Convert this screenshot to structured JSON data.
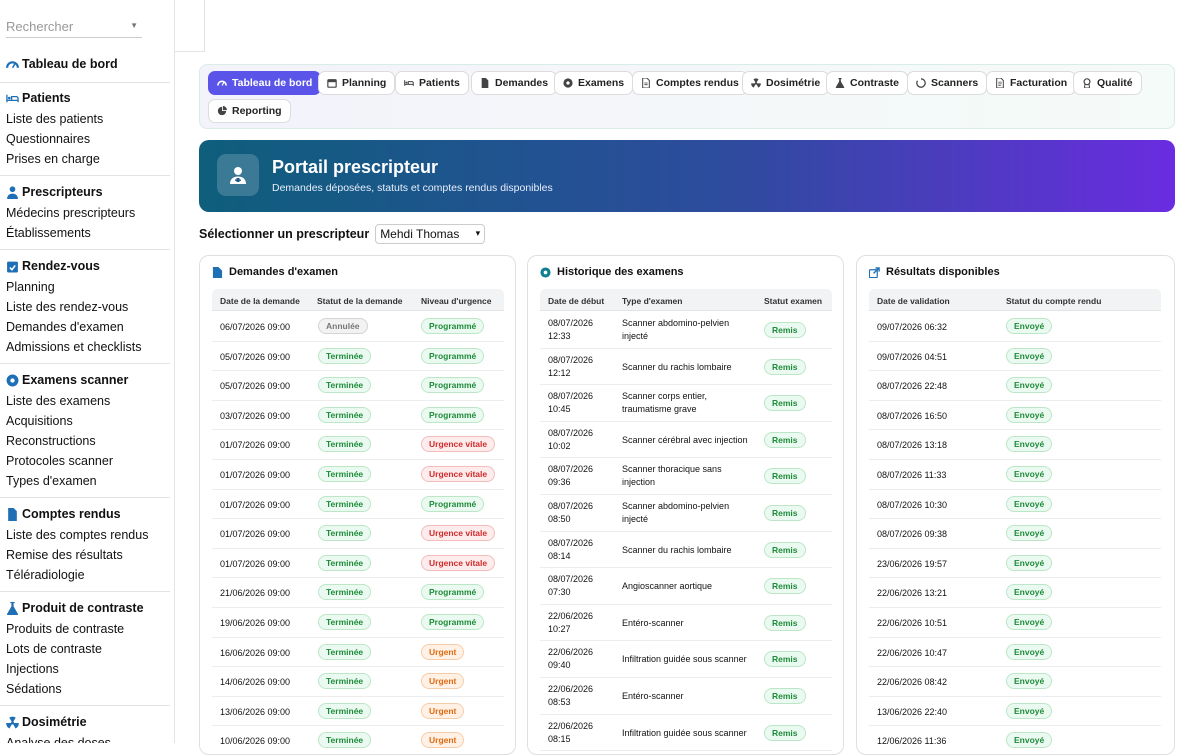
{
  "sidebar": {
    "search_placeholder": "Rechercher",
    "dashboard": "Tableau de bord",
    "sections": [
      {
        "title": "Patients",
        "icon": "bed-icon",
        "items": [
          "Liste des patients",
          "Questionnaires",
          "Prises en charge"
        ]
      },
      {
        "title": "Prescripteurs",
        "icon": "user-doctor-icon",
        "items": [
          "Médecins prescripteurs",
          "Établissements"
        ]
      },
      {
        "title": "Rendez-vous",
        "icon": "calendar-check-icon",
        "items": [
          "Planning",
          "Liste des rendez-vous",
          "Demandes d'examen",
          "Admissions et checklists"
        ]
      },
      {
        "title": "Examens scanner",
        "icon": "circle-dot-icon",
        "items": [
          "Liste des examens",
          "Acquisitions",
          "Reconstructions",
          "Protocoles scanner",
          "Types d'examen"
        ]
      },
      {
        "title": "Comptes rendus",
        "icon": "file-icon",
        "items": [
          "Liste des comptes rendus",
          "Remise des résultats",
          "Téléradiologie"
        ]
      },
      {
        "title": "Produit de contraste",
        "icon": "flask-icon",
        "items": [
          "Produits de contraste",
          "Lots de contraste",
          "Injections",
          "Sédations"
        ]
      },
      {
        "title": "Dosimétrie",
        "icon": "radiation-icon",
        "items": [
          "Analyse des doses"
        ]
      }
    ]
  },
  "tabs": [
    {
      "label": "Tableau de bord",
      "icon": "gauge-icon",
      "active": true
    },
    {
      "label": "Planning",
      "icon": "calendar-icon"
    },
    {
      "label": "Patients",
      "icon": "bed-icon"
    },
    {
      "label": "Demandes",
      "icon": "file-icon"
    },
    {
      "label": "Examens",
      "icon": "circle-dot-icon"
    },
    {
      "label": "Comptes rendus",
      "icon": "file-lines-icon"
    },
    {
      "label": "Dosimétrie",
      "icon": "radiation-icon"
    },
    {
      "label": "Contraste",
      "icon": "flask-icon"
    },
    {
      "label": "Scanners",
      "icon": "circle-notch-icon"
    },
    {
      "label": "Facturation",
      "icon": "invoice-icon"
    },
    {
      "label": "Qualité",
      "icon": "award-icon"
    },
    {
      "label": "Reporting",
      "icon": "chart-pie-icon"
    }
  ],
  "hero": {
    "title": "Portail prescripteur",
    "subtitle": "Demandes déposées, statuts et comptes rendus disponibles",
    "icon": "user-doctor-icon"
  },
  "selector": {
    "label": "Sélectionner un prescripteur",
    "value": "Mehdi Thomas"
  },
  "colors": {
    "accent": "#5a55e8",
    "hero_start": "#0e5e7c",
    "hero_end": "#6a2ce0",
    "badge_green": "#1f8b3a",
    "badge_red": "#d12a2a",
    "badge_orange": "#e06a10"
  },
  "requests": {
    "title": "Demandes d'examen",
    "headers": [
      "Date de la demande",
      "Statut de la demande",
      "Niveau d'urgence"
    ],
    "rows": [
      {
        "date": "06/07/2026 09:00",
        "status": "Annulée",
        "urgency": "Programmé"
      },
      {
        "date": "05/07/2026 09:00",
        "status": "Terminée",
        "urgency": "Programmé"
      },
      {
        "date": "05/07/2026 09:00",
        "status": "Terminée",
        "urgency": "Programmé"
      },
      {
        "date": "03/07/2026 09:00",
        "status": "Terminée",
        "urgency": "Programmé"
      },
      {
        "date": "01/07/2026 09:00",
        "status": "Terminée",
        "urgency": "Urgence vitale"
      },
      {
        "date": "01/07/2026 09:00",
        "status": "Terminée",
        "urgency": "Urgence vitale"
      },
      {
        "date": "01/07/2026 09:00",
        "status": "Terminée",
        "urgency": "Programmé"
      },
      {
        "date": "01/07/2026 09:00",
        "status": "Terminée",
        "urgency": "Urgence vitale"
      },
      {
        "date": "01/07/2026 09:00",
        "status": "Terminée",
        "urgency": "Urgence vitale"
      },
      {
        "date": "21/06/2026 09:00",
        "status": "Terminée",
        "urgency": "Programmé"
      },
      {
        "date": "19/06/2026 09:00",
        "status": "Terminée",
        "urgency": "Programmé"
      },
      {
        "date": "16/06/2026 09:00",
        "status": "Terminée",
        "urgency": "Urgent"
      },
      {
        "date": "14/06/2026 09:00",
        "status": "Terminée",
        "urgency": "Urgent"
      },
      {
        "date": "13/06/2026 09:00",
        "status": "Terminée",
        "urgency": "Urgent"
      },
      {
        "date": "10/06/2026 09:00",
        "status": "Terminée",
        "urgency": "Urgent"
      }
    ]
  },
  "history": {
    "title": "Historique des examens",
    "headers": [
      "Date de début",
      "Type d'examen",
      "Statut examen"
    ],
    "rows": [
      {
        "d1": "08/07/2026",
        "d2": "12:33",
        "t1": "Scanner abdomino-pelvien",
        "t2": "injecté",
        "status": "Remis"
      },
      {
        "d1": "08/07/2026",
        "d2": "12:12",
        "t1": "Scanner du rachis lombaire",
        "t2": "",
        "status": "Remis"
      },
      {
        "d1": "08/07/2026",
        "d2": "10:45",
        "t1": "Scanner corps entier,",
        "t2": "traumatisme grave",
        "status": "Remis"
      },
      {
        "d1": "08/07/2026",
        "d2": "10:02",
        "t1": "Scanner cérébral avec injection",
        "t2": "",
        "status": "Remis"
      },
      {
        "d1": "08/07/2026",
        "d2": "09:36",
        "t1": "Scanner thoracique sans",
        "t2": "injection",
        "status": "Remis"
      },
      {
        "d1": "08/07/2026",
        "d2": "08:50",
        "t1": "Scanner abdomino-pelvien",
        "t2": "injecté",
        "status": "Remis"
      },
      {
        "d1": "08/07/2026",
        "d2": "08:14",
        "t1": "Scanner du rachis lombaire",
        "t2": "",
        "status": "Remis"
      },
      {
        "d1": "08/07/2026",
        "d2": "07:30",
        "t1": "Angioscanner aortique",
        "t2": "",
        "status": "Remis"
      },
      {
        "d1": "22/06/2026",
        "d2": "10:27",
        "t1": "Entéro-scanner",
        "t2": "",
        "status": "Remis"
      },
      {
        "d1": "22/06/2026",
        "d2": "09:40",
        "t1": "Infiltration guidée sous scanner",
        "t2": "",
        "status": "Remis"
      },
      {
        "d1": "22/06/2026",
        "d2": "08:53",
        "t1": "Entéro-scanner",
        "t2": "",
        "status": "Remis"
      },
      {
        "d1": "22/06/2026",
        "d2": "08:15",
        "t1": "Infiltration guidée sous scanner",
        "t2": "",
        "status": "Remis"
      }
    ]
  },
  "results": {
    "title": "Résultats disponibles",
    "headers": [
      "Date de validation",
      "Statut du compte rendu"
    ],
    "rows": [
      {
        "date": "09/07/2026 06:32",
        "status": "Envoyé"
      },
      {
        "date": "09/07/2026 04:51",
        "status": "Envoyé"
      },
      {
        "date": "08/07/2026 22:48",
        "status": "Envoyé"
      },
      {
        "date": "08/07/2026 16:50",
        "status": "Envoyé"
      },
      {
        "date": "08/07/2026 13:18",
        "status": "Envoyé"
      },
      {
        "date": "08/07/2026 11:33",
        "status": "Envoyé"
      },
      {
        "date": "08/07/2026 10:30",
        "status": "Envoyé"
      },
      {
        "date": "08/07/2026 09:38",
        "status": "Envoyé"
      },
      {
        "date": "23/06/2026 19:57",
        "status": "Envoyé"
      },
      {
        "date": "22/06/2026 13:21",
        "status": "Envoyé"
      },
      {
        "date": "22/06/2026 10:51",
        "status": "Envoyé"
      },
      {
        "date": "22/06/2026 10:47",
        "status": "Envoyé"
      },
      {
        "date": "22/06/2026 08:42",
        "status": "Envoyé"
      },
      {
        "date": "13/06/2026 22:40",
        "status": "Envoyé"
      },
      {
        "date": "12/06/2026 11:36",
        "status": "Envoyé"
      }
    ]
  }
}
